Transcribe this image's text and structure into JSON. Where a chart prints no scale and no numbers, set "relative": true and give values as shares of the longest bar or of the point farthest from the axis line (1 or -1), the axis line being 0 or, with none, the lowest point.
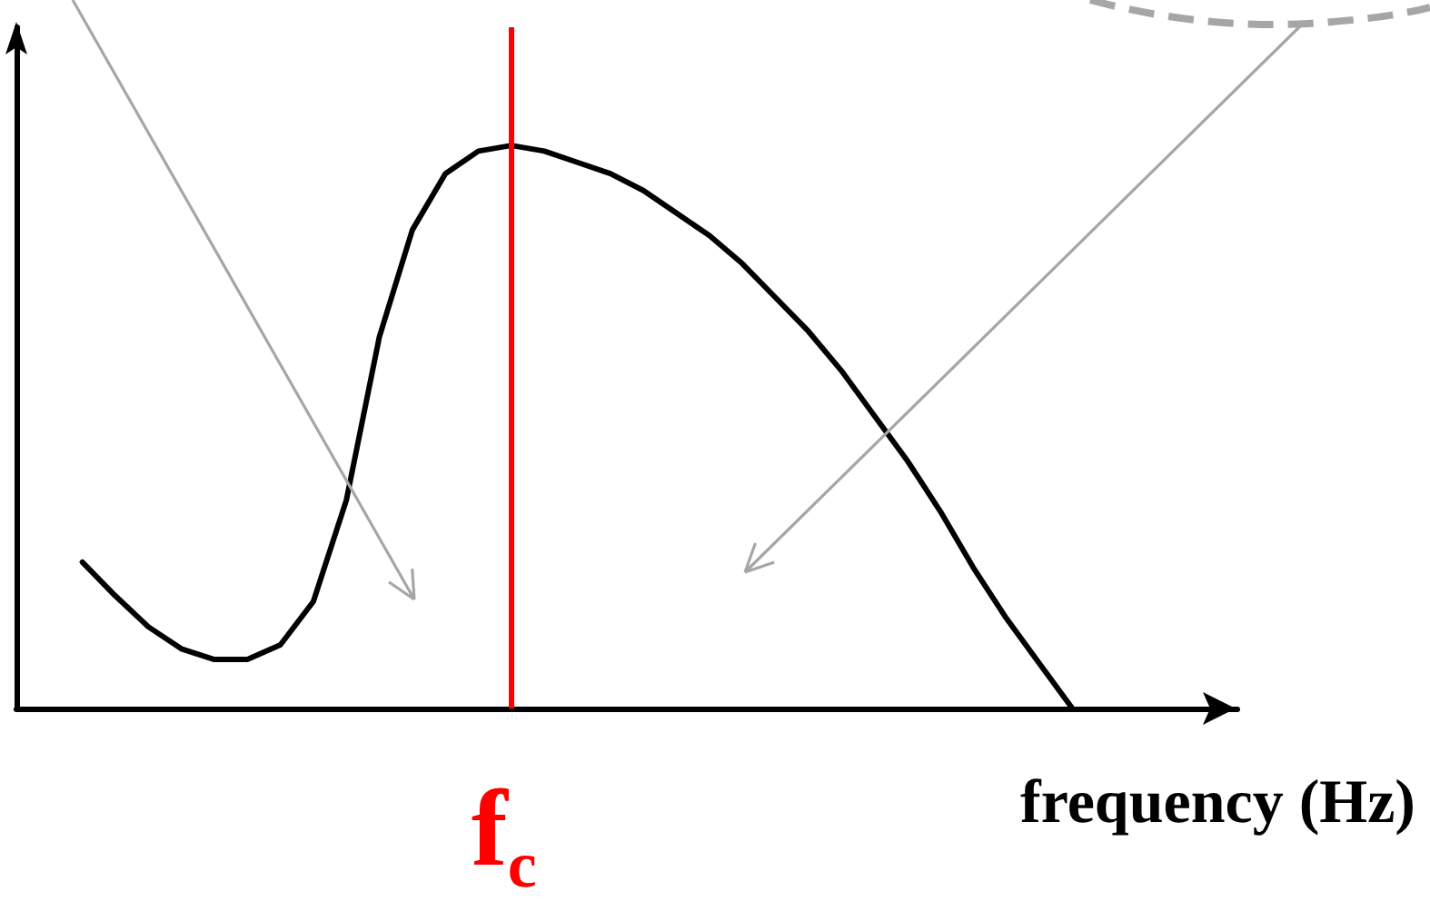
{
  "chart_data": {
    "type": "line",
    "relative": true,
    "xlabel": "frequency (Hz)",
    "categories": [
      null,
      null,
      null,
      null,
      null,
      null,
      null,
      null,
      null,
      null,
      null,
      null,
      null,
      null,
      null,
      null,
      null,
      null,
      null,
      null,
      null,
      null,
      null,
      null,
      null,
      null,
      null,
      null,
      null,
      null,
      null,
      null,
      null,
      null,
      null,
      null,
      null,
      null
    ],
    "series": [
      {
        "color": "#000000",
        "values": [
          null,
          null,
          0.26,
          0.2,
          0.145,
          0.106,
          0.087,
          0.087,
          0.113,
          0.19,
          0.37,
          0.66,
          0.85,
          0.95,
          0.99,
          1,
          0.99,
          0.97,
          0.95,
          0.92,
          0.88,
          0.84,
          0.79,
          0.73,
          0.67,
          0.6,
          0.52,
          0.44,
          0.35,
          0.25,
          0.16,
          0.08,
          0,
          null,
          null,
          null,
          null,
          null
        ]
      }
    ],
    "annotations": [
      "f$_{c}$"
    ],
    "marker": "none",
    "line_style": "solid",
    "grid": false
  }
}
